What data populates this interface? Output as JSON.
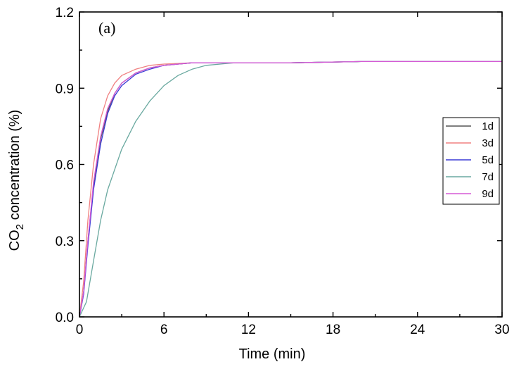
{
  "chart_data": {
    "type": "line",
    "panel_label": "(a)",
    "xlabel": "Time (min)",
    "ylabel_main": "CO",
    "ylabel_sub": "2",
    "ylabel_rest": " concentration (%)",
    "xlim": [
      0,
      30
    ],
    "ylim": [
      0,
      1.2
    ],
    "x_ticks": [
      "0",
      "6",
      "12",
      "18",
      "24",
      "30"
    ],
    "y_ticks": [
      "0.0",
      "0.3",
      "0.6",
      "0.9",
      "1.2"
    ],
    "grid": false,
    "legend_position": "right",
    "series": [
      {
        "name": "1d",
        "color": "#555555",
        "x": [
          0,
          0.3,
          0.6,
          1,
          1.5,
          2,
          2.5,
          3,
          4,
          5,
          6,
          8,
          10,
          12,
          15,
          20,
          25,
          30
        ],
        "y": [
          0,
          0.1,
          0.3,
          0.52,
          0.7,
          0.81,
          0.88,
          0.92,
          0.96,
          0.98,
          0.99,
          1.0,
          1.0,
          1.0,
          1.0,
          1.005,
          1.005,
          1.005
        ]
      },
      {
        "name": "3d",
        "color": "#f08080",
        "x": [
          0,
          0.3,
          0.6,
          1,
          1.5,
          2,
          2.5,
          3,
          4,
          5,
          6,
          8,
          10,
          12,
          15,
          20,
          25,
          30
        ],
        "y": [
          0,
          0.14,
          0.38,
          0.6,
          0.78,
          0.87,
          0.92,
          0.95,
          0.975,
          0.99,
          0.995,
          1.0,
          1.0,
          1.0,
          1.0,
          1.005,
          1.005,
          1.005
        ]
      },
      {
        "name": "5d",
        "color": "#3a3ad6",
        "x": [
          0,
          0.3,
          0.6,
          1,
          1.5,
          2,
          2.5,
          3,
          4,
          5,
          6,
          8,
          10,
          12,
          15,
          20,
          25,
          30
        ],
        "y": [
          0,
          0.09,
          0.28,
          0.5,
          0.68,
          0.8,
          0.87,
          0.91,
          0.955,
          0.975,
          0.99,
          1.0,
          1.0,
          1.0,
          1.0,
          1.005,
          1.005,
          1.005
        ]
      },
      {
        "name": "7d",
        "color": "#6aa9a0",
        "x": [
          0,
          0.5,
          1,
          1.5,
          2,
          3,
          4,
          5,
          6,
          7,
          8,
          9,
          10,
          11,
          12,
          15,
          20,
          25,
          30
        ],
        "y": [
          0,
          0.06,
          0.22,
          0.38,
          0.5,
          0.66,
          0.77,
          0.85,
          0.91,
          0.95,
          0.975,
          0.99,
          0.995,
          1.0,
          1.0,
          1.0,
          1.005,
          1.005,
          1.005
        ]
      },
      {
        "name": "9d",
        "color": "#d65ad6",
        "x": [
          0,
          0.3,
          0.6,
          1,
          1.5,
          2,
          2.5,
          3,
          4,
          5,
          6,
          8,
          10,
          12,
          15,
          20,
          25,
          30
        ],
        "y": [
          0,
          0.1,
          0.3,
          0.53,
          0.71,
          0.82,
          0.88,
          0.92,
          0.96,
          0.98,
          0.99,
          1.0,
          1.0,
          1.0,
          1.0,
          1.005,
          1.005,
          1.005
        ]
      }
    ]
  }
}
